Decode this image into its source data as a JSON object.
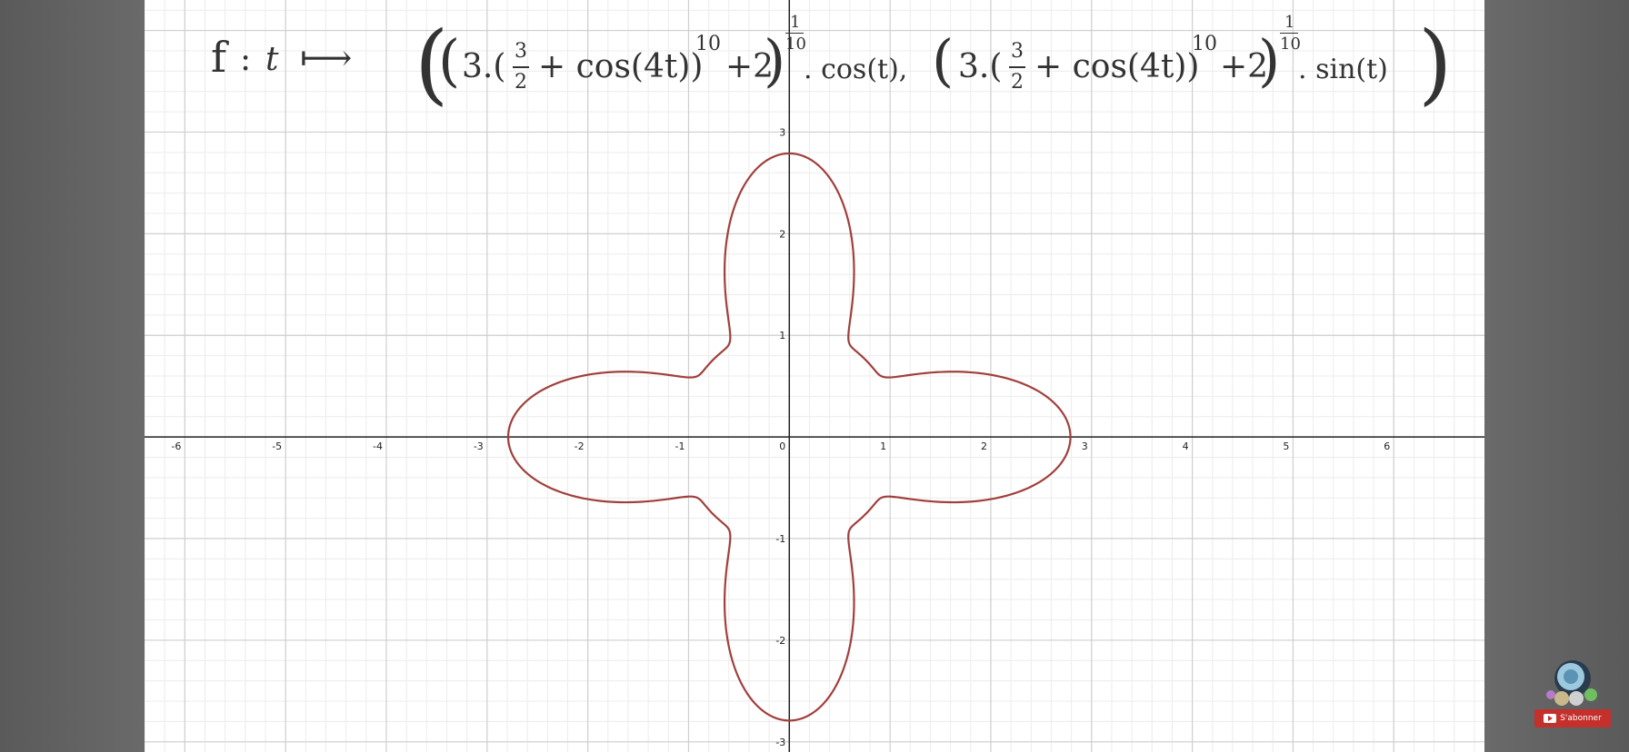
{
  "formula": {
    "f": "f",
    "colon": ":",
    "t": "t",
    "mapsto": "⟼",
    "three_dot": "3.(",
    "frac_num": "3",
    "frac_den": "2",
    "plus_cos": "+ cos(4t))",
    "exp10": "10",
    "plus2": "+2",
    "outer_exp_num": "1",
    "outer_exp_den": "10",
    "cos_t": ". cos(t),",
    "sin_t": ". sin(t)"
  },
  "chart_data": {
    "type": "line",
    "title": "",
    "xlabel": "",
    "ylabel": "",
    "xlim": [
      -6.4,
      6.9
    ],
    "ylim": [
      -3.1,
      4.3
    ],
    "x_ticks": [
      -6,
      -5,
      -4,
      -3,
      -2,
      -1,
      0,
      1,
      2,
      3,
      4,
      5,
      6
    ],
    "y_ticks": [
      -3,
      -2,
      -1,
      1,
      2,
      3
    ],
    "x_tick_labels": [
      "-6",
      "-5",
      "-4",
      "-3",
      "-2",
      "-1",
      "0",
      "1",
      "2",
      "3",
      "4",
      "5",
      "6"
    ],
    "y_tick_labels": [
      "-3",
      "-2",
      "-1",
      "1",
      "2",
      "3"
    ],
    "grid": true,
    "minor_grid_step": 0.2,
    "curve": {
      "kind": "parametric",
      "t_range": [
        0,
        6.2832
      ],
      "samples": 720,
      "expression": "r(t) = (3*(3/2 + cos(4t))^10 + 2)^(1/10); x = r*cos(t), y = r*sin(t)",
      "key_points": [
        {
          "x": 2.8,
          "y": 0
        },
        {
          "x": 0,
          "y": 2.8
        },
        {
          "x": -2.8,
          "y": 0
        },
        {
          "x": 0,
          "y": -2.8
        }
      ]
    },
    "colors": {
      "curve": "#a0403c",
      "axis": "#222222",
      "major_grid": "#cfcfcf",
      "minor_grid": "#ececec"
    }
  },
  "badge": {
    "subscribe_label": "S'abonner",
    "icon": "subscribe-youtube-icon",
    "colors": {
      "button": "#c4302b"
    }
  }
}
